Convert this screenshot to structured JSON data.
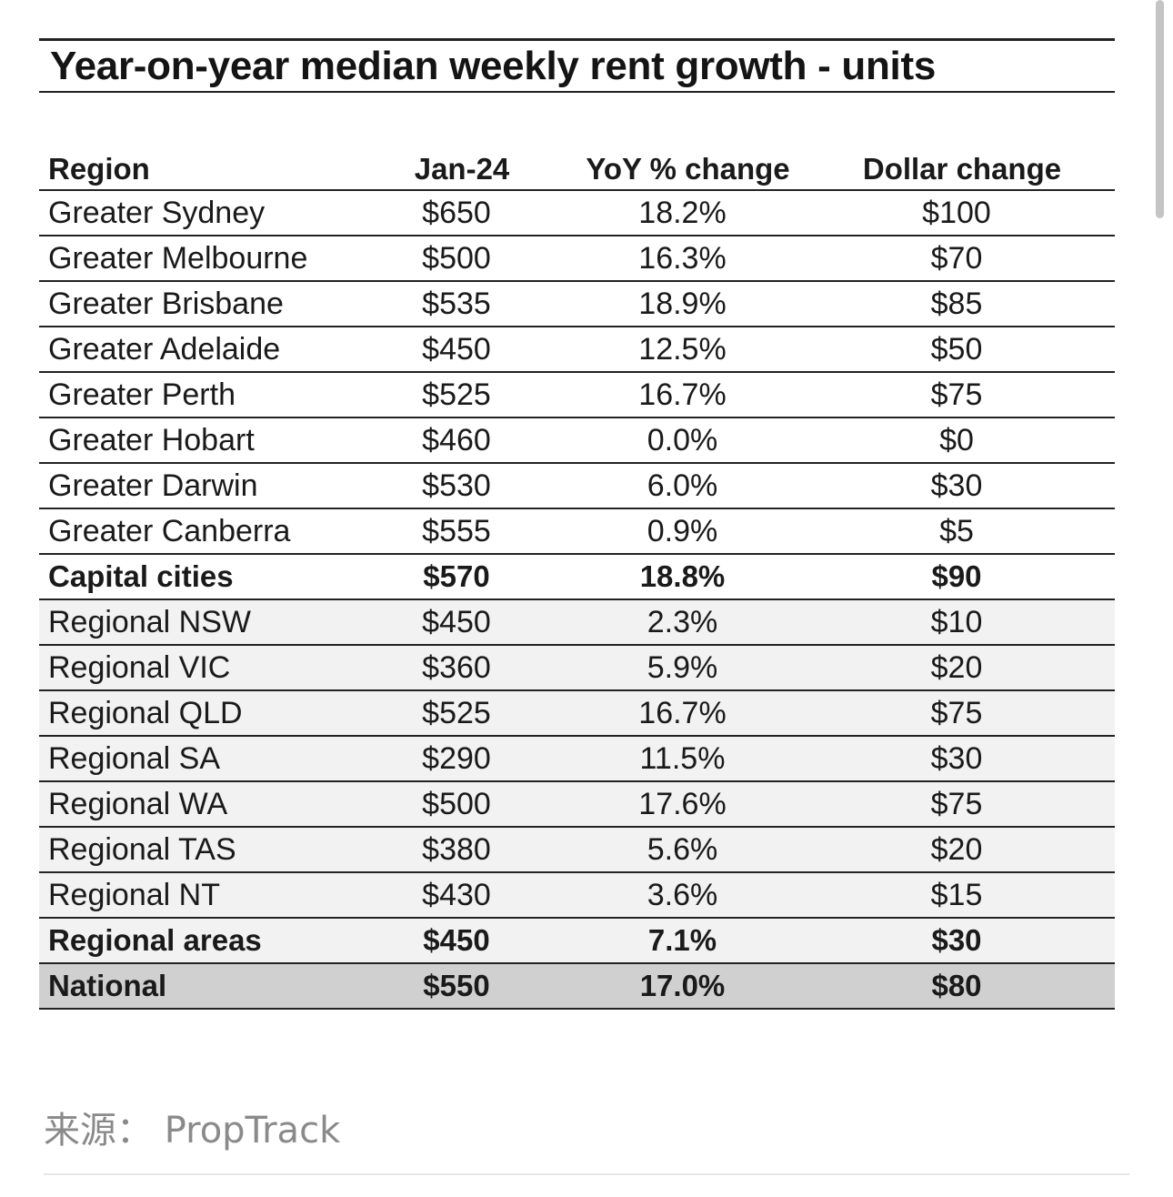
{
  "table": {
    "title": "Year-on-year median weekly rent growth - units",
    "columns": [
      "Region",
      "Jan-24",
      "YoY % change",
      "Dollar change"
    ],
    "rows": [
      {
        "region": "Greater Sydney",
        "jan24": "$650",
        "yoy": "18.2%",
        "dollar": "$100",
        "style": "normal"
      },
      {
        "region": "Greater Melbourne",
        "jan24": "$500",
        "yoy": "16.3%",
        "dollar": "$70",
        "style": "normal"
      },
      {
        "region": "Greater Brisbane",
        "jan24": "$535",
        "yoy": "18.9%",
        "dollar": "$85",
        "style": "normal"
      },
      {
        "region": "Greater Adelaide",
        "jan24": "$450",
        "yoy": "12.5%",
        "dollar": "$50",
        "style": "normal"
      },
      {
        "region": "Greater Perth",
        "jan24": "$525",
        "yoy": "16.7%",
        "dollar": "$75",
        "style": "normal"
      },
      {
        "region": "Greater Hobart",
        "jan24": "$460",
        "yoy": "0.0%",
        "dollar": "$0",
        "style": "normal"
      },
      {
        "region": "Greater Darwin",
        "jan24": "$530",
        "yoy": "6.0%",
        "dollar": "$30",
        "style": "normal"
      },
      {
        "region": "Greater Canberra",
        "jan24": "$555",
        "yoy": "0.9%",
        "dollar": "$5",
        "style": "normal"
      },
      {
        "region": "Capital cities",
        "jan24": "$570",
        "yoy": "18.8%",
        "dollar": "$90",
        "style": "bold"
      },
      {
        "region": "Regional NSW",
        "jan24": "$450",
        "yoy": "2.3%",
        "dollar": "$10",
        "style": "alt"
      },
      {
        "region": "Regional VIC",
        "jan24": "$360",
        "yoy": "5.9%",
        "dollar": "$20",
        "style": "alt"
      },
      {
        "region": "Regional QLD",
        "jan24": "$525",
        "yoy": "16.7%",
        "dollar": "$75",
        "style": "alt"
      },
      {
        "region": "Regional SA",
        "jan24": "$290",
        "yoy": "11.5%",
        "dollar": "$30",
        "style": "alt"
      },
      {
        "region": "Regional WA",
        "jan24": "$500",
        "yoy": "17.6%",
        "dollar": "$75",
        "style": "alt"
      },
      {
        "region": "Regional TAS",
        "jan24": "$380",
        "yoy": "5.6%",
        "dollar": "$20",
        "style": "alt"
      },
      {
        "region": "Regional NT",
        "jan24": "$430",
        "yoy": "3.6%",
        "dollar": "$15",
        "style": "alt"
      },
      {
        "region": "Regional areas",
        "jan24": "$450",
        "yoy": "7.1%",
        "dollar": "$30",
        "style": "alt-bold"
      },
      {
        "region": "National",
        "jan24": "$550",
        "yoy": "17.0%",
        "dollar": "$80",
        "style": "national"
      }
    ]
  },
  "source": "来源： PropTrack"
}
